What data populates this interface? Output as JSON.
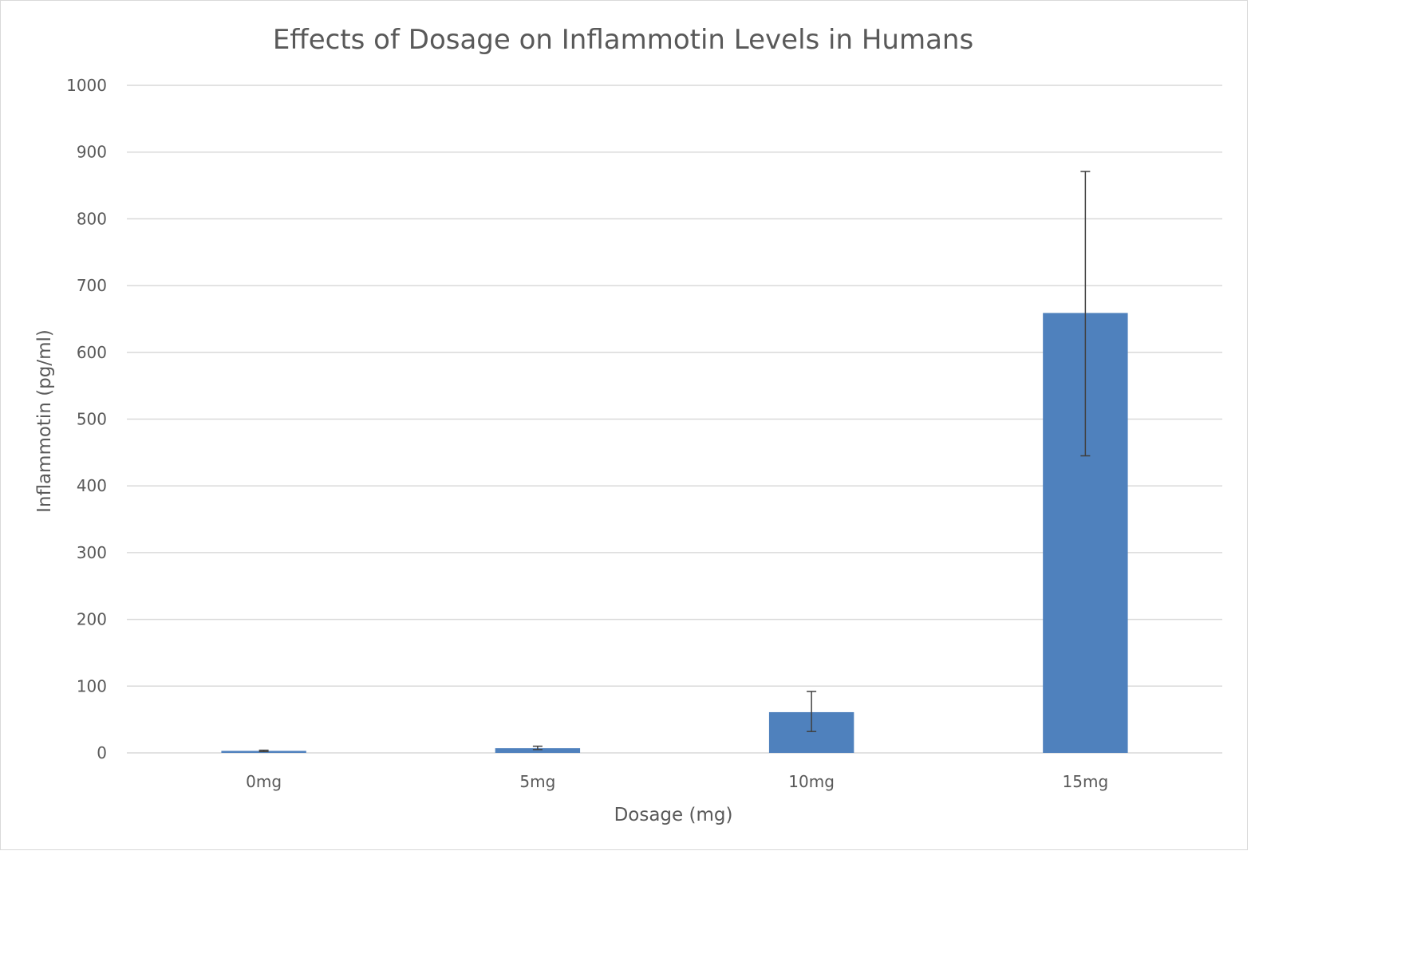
{
  "chart_data": {
    "type": "bar",
    "title": "Effects of Dosage on Inflammotin Levels in Humans",
    "xlabel": "Dosage (mg)",
    "ylabel": "Inflammotin (pg/ml)",
    "categories": [
      "0mg",
      "5mg",
      "10mg",
      "15mg"
    ],
    "values": [
      3,
      7,
      61,
      659
    ],
    "error_bars": {
      "lower": [
        2,
        5,
        32,
        445
      ],
      "upper": [
        4,
        10,
        92,
        871
      ]
    },
    "ylim": [
      0,
      1000
    ],
    "yticks": [
      0,
      100,
      200,
      300,
      400,
      500,
      600,
      700,
      800,
      900,
      1000
    ],
    "grid": true,
    "legend": "none",
    "bar_color": "#4f81bd",
    "error_bar_color": "#404040"
  }
}
